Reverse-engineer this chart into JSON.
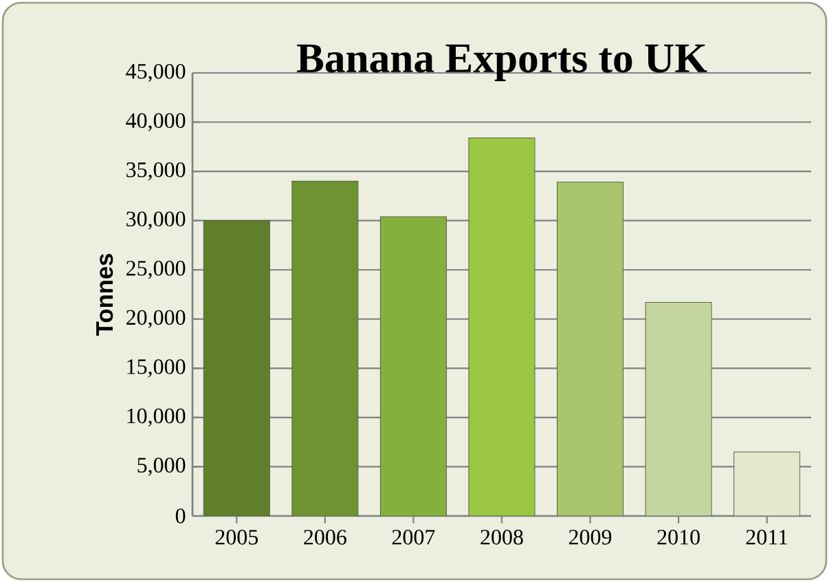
{
  "chart_data": {
    "type": "bar",
    "title": "Banana Exports to UK",
    "ylabel": "Tonnes",
    "categories": [
      "2005",
      "2006",
      "2007",
      "2008",
      "2009",
      "2010",
      "2011"
    ],
    "values": [
      30000,
      34000,
      30400,
      38400,
      33900,
      21700,
      6500
    ],
    "colors": [
      "#5f7f2a",
      "#6e9330",
      "#86b03c",
      "#9cc744",
      "#a8c46c",
      "#c5d5a0",
      "#e2e9cf"
    ],
    "ylim": [
      0,
      45000
    ],
    "yticks": [
      {
        "value": 0,
        "label": "0"
      },
      {
        "value": 5000,
        "label": "5,000"
      },
      {
        "value": 10000,
        "label": "10,000"
      },
      {
        "value": 15000,
        "label": "15,000"
      },
      {
        "value": 20000,
        "label": "20,000"
      },
      {
        "value": 25000,
        "label": "25,000"
      },
      {
        "value": 30000,
        "label": "30,000"
      },
      {
        "value": 35000,
        "label": "35,000"
      },
      {
        "value": 40000,
        "label": "40,000"
      },
      {
        "value": 45000,
        "label": "45,000"
      }
    ],
    "grid": "y"
  }
}
